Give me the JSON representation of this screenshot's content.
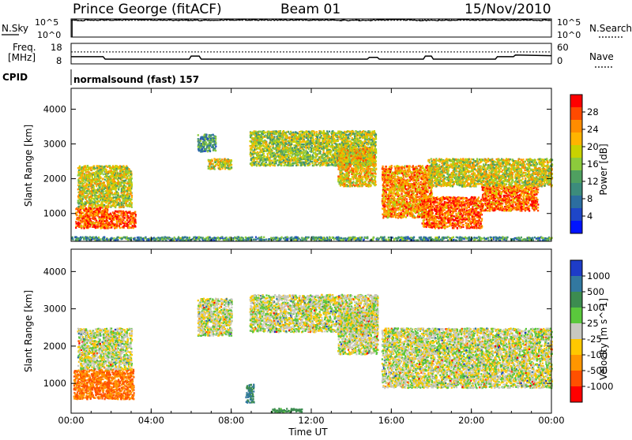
{
  "header": {
    "station": "Prince George (fitACF)",
    "beam": "Beam 01",
    "date": "15/Nov/2010"
  },
  "noise_panel": {
    "left_label": "N.Sky",
    "right_label": "N.Search",
    "ticks": [
      "10^5",
      "10^0"
    ]
  },
  "freq_panel": {
    "left_label_1": "Freq.",
    "left_label_2": "[MHz]",
    "left_ticks": [
      "18",
      "8"
    ],
    "right_label": "Nave",
    "right_ticks": [
      "60",
      "0"
    ]
  },
  "cpid": {
    "label": "CPID",
    "value": "normalsound (fast) 157"
  },
  "axes": {
    "ylabel": "Slant Range [km]",
    "xlabel": "Time UT",
    "y_ticks": [
      "4000",
      "3000",
      "2000",
      "1000"
    ],
    "x_ticks": [
      "00:00",
      "04:00",
      "08:00",
      "12:00",
      "16:00",
      "20:00",
      "00:00"
    ]
  },
  "power_colorbar": {
    "label": "Power [dB]",
    "ticks": [
      "28",
      "24",
      "20",
      "16",
      "12",
      "8",
      "4"
    ],
    "colors": [
      "#ff0000",
      "#ff4a00",
      "#ff8c00",
      "#ffb400",
      "#c8d200",
      "#8ccb3c",
      "#4fa060",
      "#3c8c7c",
      "#2c6ea0",
      "#1e46c8",
      "#0014ff"
    ]
  },
  "velocity_colorbar": {
    "label": "Velocity [m s^-1]",
    "ticks": [
      "1000",
      "500",
      "100",
      "25",
      "-25",
      "-100",
      "-500",
      "-1000"
    ],
    "colors": [
      "#1e3cc8",
      "#3278a0",
      "#3c8c50",
      "#5ac83c",
      "#c8c8c0",
      "#ffc800",
      "#ff9600",
      "#ff5000",
      "#ff0000"
    ],
    "ground_scatter": "#c8c8c0"
  },
  "chart_data": [
    {
      "type": "line",
      "title": "N.Sky / N.Search",
      "x": [
        0,
        2,
        4,
        6,
        8,
        10,
        12,
        14,
        16,
        18,
        20,
        22,
        24
      ],
      "series": [
        {
          "name": "N.Sky",
          "values": [
            4.8,
            4.9,
            4.9,
            4.8,
            4.9,
            4.9,
            4.9,
            4.8,
            4.9,
            4.8,
            4.9,
            4.9,
            4.8
          ]
        },
        {
          "name": "N.Search",
          "values": [
            4.6,
            4.6,
            4.6,
            4.6,
            4.6,
            4.6,
            4.6,
            4.6,
            4.6,
            4.6,
            4.6,
            4.6,
            4.6
          ]
        }
      ],
      "ylim": [
        0,
        5
      ]
    },
    {
      "type": "line",
      "title": "Freq / Nave",
      "x": [
        0,
        1.6,
        1.7,
        5.9,
        6.0,
        6.4,
        6.5,
        14.8,
        14.9,
        15.3,
        15.4,
        17.6,
        17.7,
        18.0,
        18.1,
        21.2,
        21.3,
        22.1,
        22.2,
        24
      ],
      "series": [
        {
          "name": "Freq",
          "values": [
            11.5,
            11.5,
            10.3,
            10.3,
            11.8,
            11.8,
            10.3,
            10.3,
            11.2,
            11.2,
            10.3,
            10.3,
            11.8,
            11.8,
            10.3,
            10.3,
            11.5,
            11.5,
            12.3,
            12.0
          ]
        },
        {
          "name": "Nave",
          "values": [
            35,
            35,
            35,
            35,
            35,
            35,
            35,
            35,
            35,
            35,
            35,
            35,
            35,
            35,
            35,
            35,
            35,
            35,
            35,
            35
          ]
        }
      ],
      "ylim": [
        8,
        18
      ],
      "xlabel": "Time UT"
    },
    {
      "type": "heatmap",
      "title": "Power [dB]",
      "xlabel": "Time UT",
      "ylabel": "Slant Range [km]",
      "xlim": [
        0,
        24
      ],
      "ylim": [
        200,
        4600
      ],
      "zlim": [
        0,
        30
      ],
      "regions": [
        {
          "t": [
            0.2,
            1.8
          ],
          "r": [
            600,
            1200
          ],
          "value": 26
        },
        {
          "t": [
            0.3,
            3.0
          ],
          "r": [
            1200,
            2400
          ],
          "value": 18
        },
        {
          "t": [
            1.5,
            3.2
          ],
          "r": [
            600,
            1100
          ],
          "value": 27
        },
        {
          "t": [
            6.3,
            7.2
          ],
          "r": [
            2800,
            3300
          ],
          "value": 10
        },
        {
          "t": [
            6.8,
            8.0
          ],
          "r": [
            2300,
            2600
          ],
          "value": 18
        },
        {
          "t": [
            8.9,
            15.2
          ],
          "r": [
            2400,
            3400
          ],
          "value": 16
        },
        {
          "t": [
            13.3,
            15.2
          ],
          "r": [
            1800,
            2900
          ],
          "value": 20
        },
        {
          "t": [
            15.5,
            18.0
          ],
          "r": [
            900,
            2400
          ],
          "value": 23
        },
        {
          "t": [
            17.5,
            20.5
          ],
          "r": [
            600,
            1500
          ],
          "value": 26
        },
        {
          "t": [
            17.8,
            24.0
          ],
          "r": [
            1800,
            2600
          ],
          "value": 18
        },
        {
          "t": [
            20.5,
            23.3
          ],
          "r": [
            1100,
            1800
          ],
          "value": 25
        },
        {
          "t": [
            0.0,
            24.0
          ],
          "r": [
            250,
            350
          ],
          "value": 10
        }
      ]
    },
    {
      "type": "heatmap",
      "title": "Velocity [m s^-1]",
      "xlabel": "Time UT",
      "ylabel": "Slant Range [km]",
      "xlim": [
        0,
        24
      ],
      "ylim": [
        200,
        4600
      ],
      "zlim": [
        -1000,
        1000
      ],
      "regions": [
        {
          "t": [
            0.1,
            3.1
          ],
          "r": [
            600,
            1400
          ],
          "value": -300
        },
        {
          "t": [
            0.3,
            3.0
          ],
          "r": [
            1400,
            2500
          ],
          "value": 0
        },
        {
          "t": [
            6.3,
            8.0
          ],
          "r": [
            2300,
            3300
          ],
          "value": 0
        },
        {
          "t": [
            8.7,
            9.1
          ],
          "r": [
            500,
            1000
          ],
          "value": 300
        },
        {
          "t": [
            8.9,
            15.3
          ],
          "r": [
            2400,
            3400
          ],
          "value": 0
        },
        {
          "t": [
            13.3,
            15.3
          ],
          "r": [
            1800,
            2900
          ],
          "value": 0
        },
        {
          "t": [
            15.5,
            24.0
          ],
          "r": [
            900,
            2500
          ],
          "value": 0
        },
        {
          "t": [
            10.0,
            11.5
          ],
          "r": [
            250,
            350
          ],
          "value": 100
        }
      ]
    }
  ]
}
